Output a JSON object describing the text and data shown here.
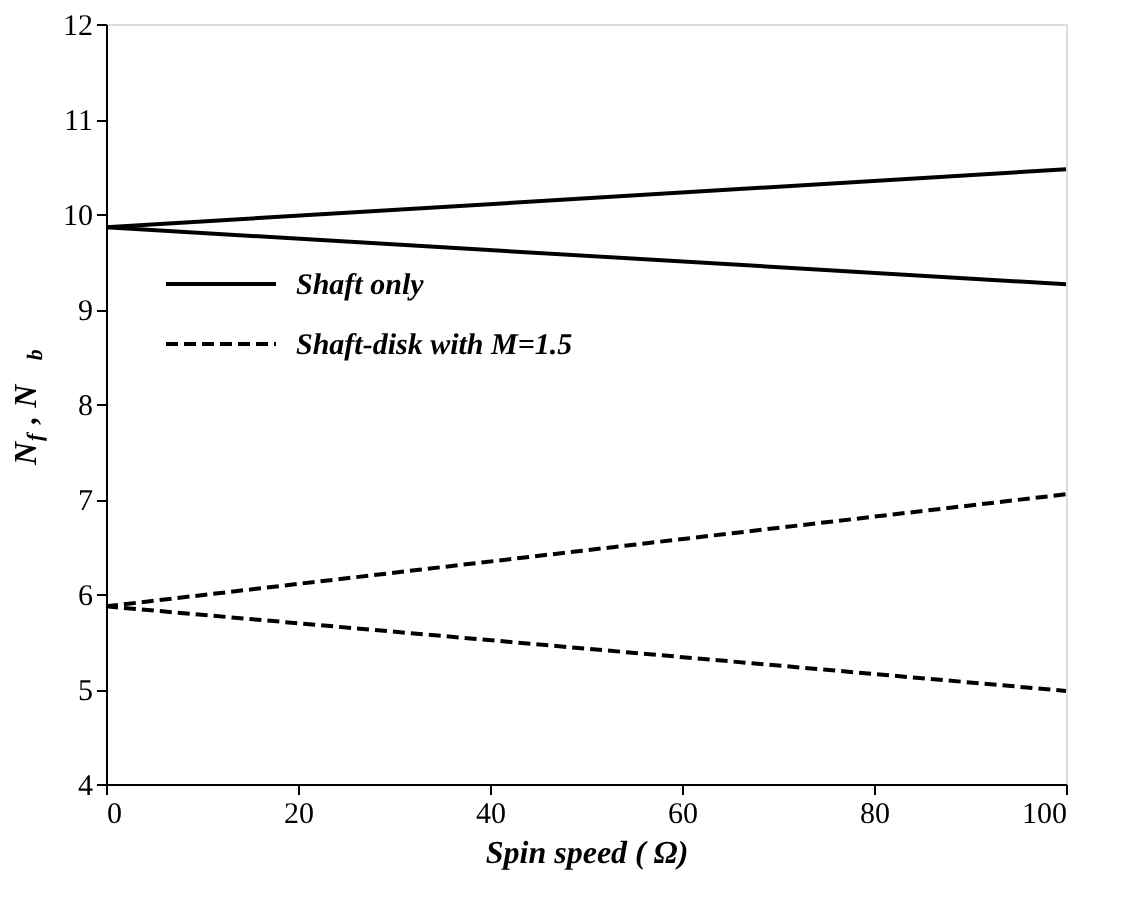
{
  "chart_data": {
    "type": "line",
    "xlabel": "Spin speed ( Ω)",
    "ylabel": "N$_{f}$, N$_{b}$",
    "xlim": [
      0,
      100
    ],
    "ylim": [
      4,
      12
    ],
    "xticks": [
      0,
      20,
      40,
      60,
      80,
      100
    ],
    "yticks": [
      4,
      5,
      6,
      7,
      8,
      9,
      10,
      11,
      12
    ],
    "grid": false,
    "legend": "top left",
    "x": [
      0,
      100
    ],
    "series": [
      {
        "name": "Shaft only",
        "color": "#000000",
        "line_style": "solid",
        "values": [
          9.86,
          10.47
        ]
      },
      {
        "color": "#000000",
        "line_style": "solid",
        "values": [
          9.86,
          9.26
        ]
      },
      {
        "name": "Shaft-disk with M=1.5",
        "color": "#000000",
        "line_style": "dashed",
        "values": [
          5.87,
          7.05
        ]
      },
      {
        "color": "#000000",
        "line_style": "dashed",
        "values": [
          5.87,
          4.98
        ]
      }
    ]
  }
}
